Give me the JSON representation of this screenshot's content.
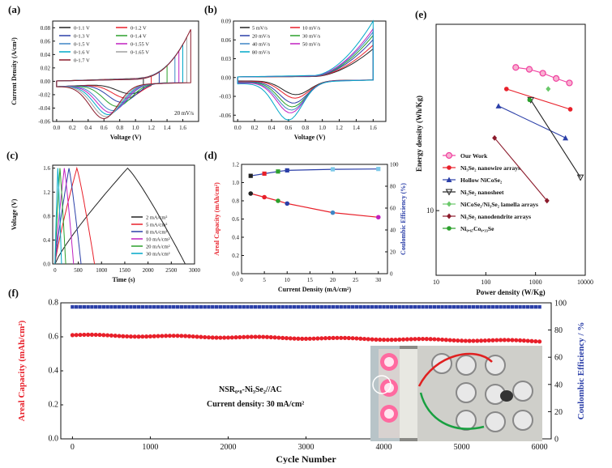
{
  "panels": {
    "a": {
      "letter": "(a)"
    },
    "b": {
      "letter": "(b)"
    },
    "c": {
      "letter": "(c)"
    },
    "d": {
      "letter": "(d)"
    },
    "e": {
      "letter": "(e)"
    },
    "f": {
      "letter": "(f)"
    }
  },
  "chart_data": [
    {
      "id": "a",
      "type": "line",
      "xlabel": "Voltage (V)",
      "ylabel": "Current Density (A/cm²)",
      "annotation": "20 mV/s",
      "xlim": [
        -0.05,
        1.8
      ],
      "ylim": [
        -0.06,
        0.09
      ],
      "xticks": [
        0.0,
        0.2,
        0.4,
        0.6,
        0.8,
        1.0,
        1.2,
        1.4,
        1.6
      ],
      "yticks": [
        -0.06,
        -0.04,
        -0.02,
        0.0,
        0.02,
        0.04,
        0.06,
        0.08
      ],
      "xtick_labels": [
        "0.0",
        "0.2",
        "0.4",
        "0.6",
        "0.8",
        "1.0",
        "1.2",
        "1.4",
        "1.6"
      ],
      "ytick_labels": [
        "-0.06",
        "-0.04",
        "-0.02",
        "0.00",
        "0.02",
        "0.04",
        "0.06",
        "0.08"
      ],
      "legend_position": "top-left",
      "series": [
        {
          "name": "0-1.1 V",
          "vmax": 1.1,
          "color": "#222222"
        },
        {
          "name": "0-1.2 V",
          "vmax": 1.2,
          "color": "#e8202a"
        },
        {
          "name": "0-1.3 V",
          "vmax": 1.3,
          "color": "#2b3fa8"
        },
        {
          "name": "0-1.4 V",
          "vmax": 1.4,
          "color": "#2ca02c"
        },
        {
          "name": "0-1.5 V",
          "vmax": 1.5,
          "color": "#3d86c6"
        },
        {
          "name": "0-1.55 V",
          "vmax": 1.55,
          "color": "#c020c0"
        },
        {
          "name": "0-1.6 V",
          "vmax": 1.6,
          "color": "#00a8c8"
        },
        {
          "name": "0-1.65 V",
          "vmax": 1.65,
          "color": "#a0a0a0"
        },
        {
          "name": "0-1.7 V",
          "vmax": 1.7,
          "color": "#8b1a2b"
        }
      ]
    },
    {
      "id": "b",
      "type": "line",
      "xlabel": "Voltage (V)",
      "ylabel": "",
      "xlim": [
        -0.05,
        1.75
      ],
      "ylim": [
        -0.07,
        0.09
      ],
      "xticks": [
        0.0,
        0.2,
        0.4,
        0.6,
        0.8,
        1.0,
        1.2,
        1.4,
        1.6
      ],
      "yticks": [
        -0.06,
        -0.03,
        0.0,
        0.03,
        0.06,
        0.09
      ],
      "xtick_labels": [
        "0.0",
        "0.2",
        "0.4",
        "0.6",
        "0.8",
        "1.0",
        "1.2",
        "1.4",
        "1.6"
      ],
      "ytick_labels": [
        "-0.06",
        "-0.03",
        "0.00",
        "0.03",
        "0.06",
        "0.09"
      ],
      "legend_position": "top-left",
      "series": [
        {
          "name": "5  mV/s",
          "rate": 5,
          "color": "#222222"
        },
        {
          "name": "10  mV/s",
          "rate": 10,
          "color": "#e8202a"
        },
        {
          "name": "20  mV/s",
          "rate": 20,
          "color": "#2b3fa8"
        },
        {
          "name": "30  mV/s",
          "rate": 30,
          "color": "#2ca02c"
        },
        {
          "name": "40  mV/s",
          "rate": 40,
          "color": "#3d86c6"
        },
        {
          "name": "50  mV/s",
          "rate": 50,
          "color": "#c020c0"
        },
        {
          "name": "80  mV/s",
          "rate": 80,
          "color": "#00a8c8"
        }
      ]
    },
    {
      "id": "c",
      "type": "line",
      "xlabel": "Time (s)",
      "ylabel": "Voltage (V)",
      "xlim": [
        -50,
        3000
      ],
      "ylim": [
        0.0,
        1.65
      ],
      "xticks": [
        0,
        500,
        1000,
        1500,
        2000,
        2500,
        3000
      ],
      "yticks": [
        0.0,
        0.4,
        0.8,
        1.2,
        1.6
      ],
      "xtick_labels": [
        "0",
        "500",
        "1000",
        "1500",
        "2000",
        "2500",
        "3000"
      ],
      "ytick_labels": [
        "0.0",
        "0.4",
        "0.8",
        "1.2",
        "1.6"
      ],
      "legend_position": "bottom-right",
      "series": [
        {
          "name": "2  mA/cm²",
          "t_charge": 1560,
          "t_total": 2800,
          "color": "#222222"
        },
        {
          "name": "5  mA/cm²",
          "t_charge": 470,
          "t_total": 850,
          "color": "#e8202a"
        },
        {
          "name": "8  mA/cm²",
          "t_charge": 300,
          "t_total": 560,
          "color": "#2b3fa8"
        },
        {
          "name": "10  mA/cm²",
          "t_charge": 200,
          "t_total": 400,
          "color": "#c020c0"
        },
        {
          "name": "20  mA/cm²",
          "t_charge": 105,
          "t_total": 230,
          "color": "#2ca02c"
        },
        {
          "name": "30  mA/cm²",
          "t_charge": 60,
          "t_total": 140,
          "color": "#00a8c8"
        }
      ]
    },
    {
      "id": "d",
      "type": "line",
      "xlabel": "Current Density (mA/cm²)",
      "ylabel": "Areal Capacity (mAh/cm²)",
      "y2label": "Coulombic Efficiency (%)",
      "xlim": [
        0,
        32
      ],
      "ylim": [
        0.0,
        1.2
      ],
      "y2lim": [
        0,
        100
      ],
      "xticks": [
        0,
        5,
        10,
        15,
        20,
        25,
        30
      ],
      "yticks": [
        0.0,
        0.2,
        0.4,
        0.6,
        0.8,
        1.0,
        1.2
      ],
      "y2ticks": [
        0,
        20,
        40,
        60,
        80,
        100
      ],
      "xtick_labels": [
        "0",
        "5",
        "10",
        "15",
        "20",
        "25",
        "30"
      ],
      "ytick_labels": [
        "0.0",
        "0.2",
        "0.4",
        "0.6",
        "0.8",
        "1.0",
        "1.2"
      ],
      "y2tick_labels": [
        "0",
        "20",
        "40",
        "60",
        "80",
        "100"
      ],
      "series": [
        {
          "name": "Areal Capacity",
          "axis": "left",
          "x": [
            2,
            5,
            8,
            10,
            20,
            30
          ],
          "y": [
            0.88,
            0.84,
            0.8,
            0.77,
            0.67,
            0.62
          ],
          "color": "#e8202a"
        },
        {
          "name": "Coulombic Efficiency",
          "axis": "right",
          "x": [
            2,
            5,
            8,
            10,
            20,
            30
          ],
          "y": [
            89.5,
            91.5,
            93.5,
            94.5,
            95.5,
            95.8
          ],
          "color": "#2b3fa8"
        }
      ]
    },
    {
      "id": "e",
      "type": "scatter",
      "scale": "log-log",
      "xlabel": "Power density (W/Kg)",
      "ylabel": "Energy density (Wh/Kg)",
      "xlim": [
        10,
        10000
      ],
      "ylim": [
        4,
        140
      ],
      "xticks": [
        10,
        100,
        1000,
        10000
      ],
      "xtick_labels": [
        "10",
        "100",
        "1000",
        "10000"
      ],
      "yticks": [
        10
      ],
      "ytick_labels": [
        "10"
      ],
      "legend_position": "bottom-left",
      "series": [
        {
          "name": "Our Work",
          "x": [
            400,
            750,
            1400,
            2600,
            4800
          ],
          "y": [
            76,
            74,
            70,
            65,
            61
          ],
          "color": "#f040a0",
          "marker": "circle-open"
        },
        {
          "name": "Ni₃Se₂ nanowire arrays",
          "x": [
            260,
            5000
          ],
          "y": [
            56,
            42
          ],
          "color": "#e8202a",
          "marker": "circle"
        },
        {
          "name": "Hollow NiCoSe₂",
          "x": [
            180,
            4000
          ],
          "y": [
            44,
            28
          ],
          "color": "#2b3fa8",
          "marker": "triangle"
        },
        {
          "name": "Ni₃Se₂ nanosheet",
          "x": [
            800,
            8000
          ],
          "y": [
            48,
            16
          ],
          "color": "#222222",
          "marker": "triangle-down"
        },
        {
          "name": "NiCoSe₂/Ni₃Se₂ lamella arrays",
          "x": [
            1800
          ],
          "y": [
            56
          ],
          "color": "#6ac96a",
          "marker": "diamond"
        },
        {
          "name": "Ni₃Se₂ nanodendrite arrays",
          "x": [
            150,
            1700
          ],
          "y": [
            28,
            11.5
          ],
          "color": "#8b1a2b",
          "marker": "diamond"
        },
        {
          "name": "Ni₀.₆₇Co₀.₃₃Se",
          "x": [
            760
          ],
          "y": [
            48
          ],
          "color": "#2ca02c",
          "marker": "circle"
        }
      ]
    },
    {
      "id": "f",
      "type": "scatter",
      "xlabel": "Cycle Number",
      "ylabel": "Areal Capacity (mAh/cm²)",
      "y2label": "Coulombic Efficiency / %",
      "xlim": [
        -150,
        6150
      ],
      "ylim": [
        0.0,
        0.8
      ],
      "y2lim": [
        0,
        100
      ],
      "xticks": [
        0,
        1000,
        2000,
        3000,
        4000,
        5000,
        6000
      ],
      "xtick_labels": [
        "0",
        "1000",
        "2000",
        "3000",
        "4000",
        "5000",
        "6000"
      ],
      "yticks": [
        0.0,
        0.2,
        0.4,
        0.6,
        0.8
      ],
      "ytick_labels": [
        "0.0",
        "0.2",
        "0.4",
        "0.6",
        "0.8"
      ],
      "y2ticks": [
        0,
        20,
        40,
        60,
        80,
        100
      ],
      "y2tick_labels": [
        "0",
        "20",
        "40",
        "60",
        "80",
        "100"
      ],
      "annotation_1": "NSR₀.₈-Ni₃Se₂//AC",
      "annotation_2": "Current density: 30 mA/cm²",
      "series": [
        {
          "name": "Areal Capacity",
          "axis": "left",
          "start": 0.61,
          "end": 0.575,
          "color": "#e8202a"
        },
        {
          "name": "Coulombic Efficiency",
          "axis": "right",
          "value": 97,
          "color": "#2b3fa8"
        }
      ]
    }
  ]
}
